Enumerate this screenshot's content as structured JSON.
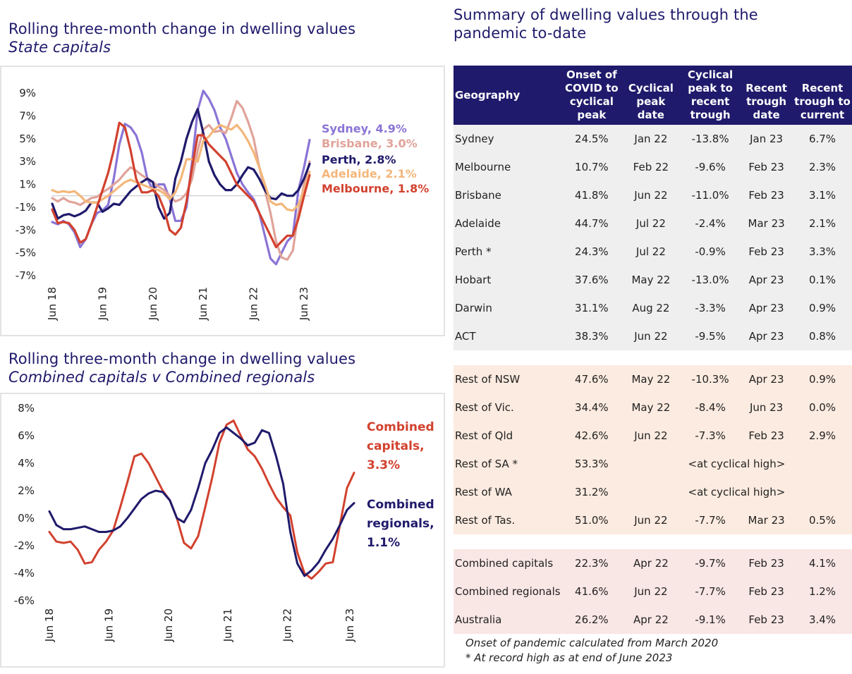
{
  "chart_data": [
    {
      "type": "line",
      "title": "Rolling three-month change in dwelling values",
      "subtitle": "State capitals",
      "xlabel": "",
      "ylabel": "",
      "x": [
        0,
        1,
        2,
        3,
        4,
        5,
        6,
        7,
        8,
        9,
        10,
        11,
        12,
        13,
        14,
        15,
        16,
        17,
        18,
        19,
        20,
        21,
        22,
        23,
        24,
        25,
        26,
        27,
        28,
        29,
        30,
        31,
        32,
        33,
        34,
        35,
        36,
        37,
        38,
        39,
        40,
        41,
        42,
        43,
        44,
        45,
        46,
        47,
        48,
        49,
        50,
        51,
        52,
        53,
        54,
        55,
        56,
        57,
        58,
        59,
        60
      ],
      "x_tick_labels": [
        "Jun 18",
        "Jun 19",
        "Jun 20",
        "Jun 21",
        "Jun 22",
        "Jun 23"
      ],
      "x_tick_index": [
        0,
        12,
        24,
        36,
        48,
        60
      ],
      "y_ticks": [
        "9%",
        "7%",
        "5%",
        "3%",
        "1%",
        "-1%",
        "-3%",
        "-5%",
        "-7%"
      ],
      "ylim": [
        -7,
        9
      ],
      "series": [
        {
          "name": "Sydney",
          "label": "Sydney, 4.9%",
          "color": "#8a74d6",
          "values": [
            -2.3,
            -2.5,
            -2.2,
            -2.5,
            -3.2,
            -4.5,
            -3.8,
            -2.5,
            -1.5,
            -1.3,
            -0.8,
            1.5,
            4.5,
            6.3,
            6.0,
            5.3,
            3.8,
            1.5,
            0.5,
            1.0,
            1.0,
            -0.3,
            -2.2,
            -2.2,
            -1.0,
            3.0,
            7.5,
            9.2,
            8.5,
            7.5,
            6.0,
            5.0,
            3.5,
            2.0,
            1.0,
            0.3,
            -0.3,
            -1.5,
            -3.5,
            -5.5,
            -6.0,
            -5.0,
            -4.0,
            -3.5,
            0.5,
            2.5,
            4.9,
            4.9,
            4.9,
            4.9,
            4.9,
            4.9,
            4.9,
            4.9,
            4.9,
            4.9,
            4.9,
            4.9,
            4.9,
            4.9,
            4.9
          ]
        },
        {
          "name": "Brisbane",
          "label": "Brisbane, 3.0%",
          "color": "#e0a39a",
          "values": [
            -0.2,
            -0.5,
            -0.2,
            -0.5,
            -0.6,
            -0.8,
            -0.5,
            -0.2,
            -0.1,
            0.3,
            0.6,
            1.0,
            1.4,
            2.0,
            2.5,
            2.2,
            1.8,
            1.5,
            1.2,
            0.8,
            0.5,
            0.0,
            -0.5,
            -0.3,
            0.2,
            1.5,
            4.0,
            5.8,
            6.2,
            5.6,
            5.7,
            5.5,
            6.8,
            8.3,
            7.7,
            6.5,
            5.0,
            2.5,
            0.5,
            -1.5,
            -4.0,
            -5.4,
            -5.6,
            -4.8,
            -1.5,
            1.0,
            3.0,
            3.0,
            3.0,
            3.0,
            3.0,
            3.0,
            3.0,
            3.0,
            3.0,
            3.0,
            3.0,
            3.0,
            3.0,
            3.0,
            3.0
          ]
        },
        {
          "name": "Perth",
          "label": "Perth, 2.8%",
          "color": "#1f1a6b",
          "values": [
            -0.7,
            -2.0,
            -1.7,
            -1.6,
            -1.8,
            -1.6,
            -1.3,
            -0.6,
            -0.6,
            -1.4,
            -1.1,
            -0.7,
            -0.8,
            -0.2,
            0.4,
            0.8,
            1.2,
            1.5,
            1.2,
            -1.0,
            -2.0,
            -1.5,
            1.5,
            3.0,
            5.0,
            6.5,
            7.6,
            5.5,
            3.0,
            1.8,
            1.0,
            0.5,
            0.5,
            1.0,
            1.8,
            2.5,
            2.3,
            1.5,
            0.5,
            -0.2,
            -0.3,
            0.2,
            0.0,
            0.0,
            0.5,
            1.5,
            2.8,
            2.8,
            2.8,
            2.8,
            2.8,
            2.8,
            2.8,
            2.8,
            2.8,
            2.8,
            2.8,
            2.8,
            2.8,
            2.8,
            2.8
          ]
        },
        {
          "name": "Adelaide",
          "label": "Adelaide, 2.1%",
          "color": "#f3b77a",
          "values": [
            0.5,
            0.3,
            0.4,
            0.3,
            0.4,
            0.0,
            -0.5,
            -0.6,
            -0.6,
            -0.3,
            0.0,
            0.4,
            0.8,
            1.2,
            1.4,
            1.2,
            1.0,
            0.8,
            0.6,
            0.5,
            0.2,
            -0.3,
            0.3,
            1.5,
            3.2,
            3.2,
            3.0,
            4.8,
            5.2,
            5.8,
            6.2,
            6.0,
            5.8,
            6.2,
            5.6,
            4.8,
            3.8,
            2.5,
            1.0,
            -0.5,
            -0.8,
            -0.7,
            -1.2,
            -1.3,
            -0.8,
            0.5,
            2.1,
            2.1,
            2.1,
            2.1,
            2.1,
            2.1,
            2.1,
            2.1,
            2.1,
            2.1,
            2.1,
            2.1,
            2.1,
            2.1,
            2.1
          ]
        },
        {
          "name": "Melbourne",
          "label": "Melbourne, 1.8%",
          "color": "#d2412e",
          "values": [
            -1.2,
            -2.4,
            -2.3,
            -2.4,
            -3.0,
            -4.1,
            -3.8,
            -2.5,
            -1.0,
            0.5,
            2.0,
            4.0,
            6.4,
            6.0,
            4.0,
            1.5,
            0.3,
            0.3,
            0.5,
            0.0,
            -1.2,
            -3.0,
            -3.4,
            -2.8,
            -0.5,
            2.5,
            5.3,
            5.3,
            4.5,
            4.0,
            3.5,
            3.0,
            2.0,
            1.0,
            0.5,
            0.0,
            -0.5,
            -1.5,
            -2.5,
            -3.5,
            -4.5,
            -4.0,
            -3.5,
            -3.5,
            -2.0,
            0.0,
            1.8,
            1.8,
            1.8,
            1.8,
            1.8,
            1.8,
            1.8,
            1.8,
            1.8,
            1.8,
            1.8,
            1.8,
            1.8,
            1.8,
            1.8
          ]
        }
      ]
    },
    {
      "type": "line",
      "title": "Rolling three-month change in dwelling values",
      "subtitle": "Combined capitals v Combined regionals",
      "xlabel": "",
      "ylabel": "",
      "x_tick_labels": [
        "Jun 18",
        "Jun 19",
        "Jun 20",
        "Jun 21",
        "Jun 22",
        "Jun 23"
      ],
      "y_ticks": [
        "8%",
        "6%",
        "4%",
        "2%",
        "0%",
        "-2%",
        "-4%",
        "-6%"
      ],
      "ylim": [
        -6,
        8
      ],
      "series": [
        {
          "name": "Combined capitals",
          "label_lines": [
            "Combined",
            "capitals,",
            "3.3%"
          ],
          "color": "#d2412e",
          "values": [
            -1.0,
            -1.7,
            -1.8,
            -1.7,
            -2.3,
            -3.3,
            -3.2,
            -2.3,
            -1.7,
            -0.9,
            0.8,
            2.6,
            4.5,
            4.7,
            4.0,
            3.0,
            2.0,
            1.3,
            0.0,
            -1.8,
            -2.2,
            -1.3,
            0.8,
            3.0,
            5.5,
            6.8,
            7.1,
            6.0,
            5.0,
            4.5,
            3.6,
            2.5,
            1.5,
            0.8,
            0.2,
            -2.5,
            -4.0,
            -4.4,
            -3.9,
            -3.3,
            -3.2,
            -0.5,
            2.2,
            3.3
          ]
        },
        {
          "name": "Combined regionals",
          "label_lines": [
            "Combined",
            "regionals,",
            "1.1%"
          ],
          "color": "#1f1a6b",
          "values": [
            0.5,
            -0.5,
            -0.8,
            -0.8,
            -0.7,
            -0.6,
            -0.8,
            -1.0,
            -1.0,
            -0.9,
            -0.6,
            0.0,
            0.7,
            1.4,
            1.8,
            2.0,
            1.9,
            1.3,
            0.0,
            -0.3,
            0.6,
            2.2,
            4.0,
            5.0,
            6.2,
            6.6,
            6.2,
            5.8,
            5.3,
            5.5,
            6.4,
            6.2,
            4.5,
            2.5,
            -1.0,
            -3.3,
            -4.2,
            -3.8,
            -3.2,
            -2.3,
            -1.5,
            -0.5,
            0.6,
            1.1
          ]
        }
      ]
    }
  ],
  "table": {
    "title": "Summary of dwelling values through the pandemic to-date",
    "headers": [
      "Geography",
      "Onset of COVID to cyclical peak",
      "Cyclical peak date",
      "Cyclical peak to recent trough",
      "Recent trough date",
      "Recent trough to current"
    ],
    "capitals": [
      [
        "Sydney",
        "24.5%",
        "Jan 22",
        "-13.8%",
        "Jan 23",
        "6.7%"
      ],
      [
        "Melbourne",
        "10.7%",
        "Feb 22",
        "-9.6%",
        "Feb 23",
        "2.3%"
      ],
      [
        "Brisbane",
        "41.8%",
        "Jun 22",
        "-11.0%",
        "Feb 23",
        "3.1%"
      ],
      [
        "Adelaide",
        "44.7%",
        "Jul 22",
        "-2.4%",
        "Mar 23",
        "2.1%"
      ],
      [
        "Perth *",
        "24.3%",
        "Jul 22",
        "-0.9%",
        "Feb 23",
        "3.3%"
      ],
      [
        "Hobart",
        "37.6%",
        "May 22",
        "-13.0%",
        "Apr 23",
        "0.1%"
      ],
      [
        "Darwin",
        "31.1%",
        "Aug 22",
        "-3.3%",
        "Apr 23",
        "0.9%"
      ],
      [
        "ACT",
        "38.3%",
        "Jun 22",
        "-9.5%",
        "Apr 23",
        "0.8%"
      ]
    ],
    "regionals": [
      [
        "Rest of NSW",
        "47.6%",
        "May 22",
        "-10.3%",
        "Apr 23",
        "0.9%"
      ],
      [
        "Rest of Vic.",
        "34.4%",
        "May 22",
        "-8.4%",
        "Jun 23",
        "0.0%"
      ],
      [
        "Rest of Qld",
        "42.6%",
        "Jun 22",
        "-7.3%",
        "Feb 23",
        "2.9%"
      ],
      [
        "Rest of SA *",
        "53.3%",
        "<at cyclical high>"
      ],
      [
        "Rest of WA",
        "31.2%",
        "<at cyclical high>"
      ],
      [
        "Rest of Tas.",
        "51.0%",
        "Jun 22",
        "-7.7%",
        "Mar 23",
        "0.5%"
      ]
    ],
    "aggregates": [
      [
        "Combined capitals",
        "22.3%",
        "Apr 22",
        "-9.7%",
        "Feb 23",
        "4.1%"
      ],
      [
        "Combined regionals",
        "41.6%",
        "Jun 22",
        "-7.7%",
        "Feb 23",
        "1.2%"
      ],
      [
        "Australia",
        "26.2%",
        "Apr 22",
        "-9.1%",
        "Feb 23",
        "3.4%"
      ]
    ],
    "footnotes": [
      "Onset of pandemic calculated from March 2020",
      "* At record high as at end of June 2023"
    ]
  }
}
